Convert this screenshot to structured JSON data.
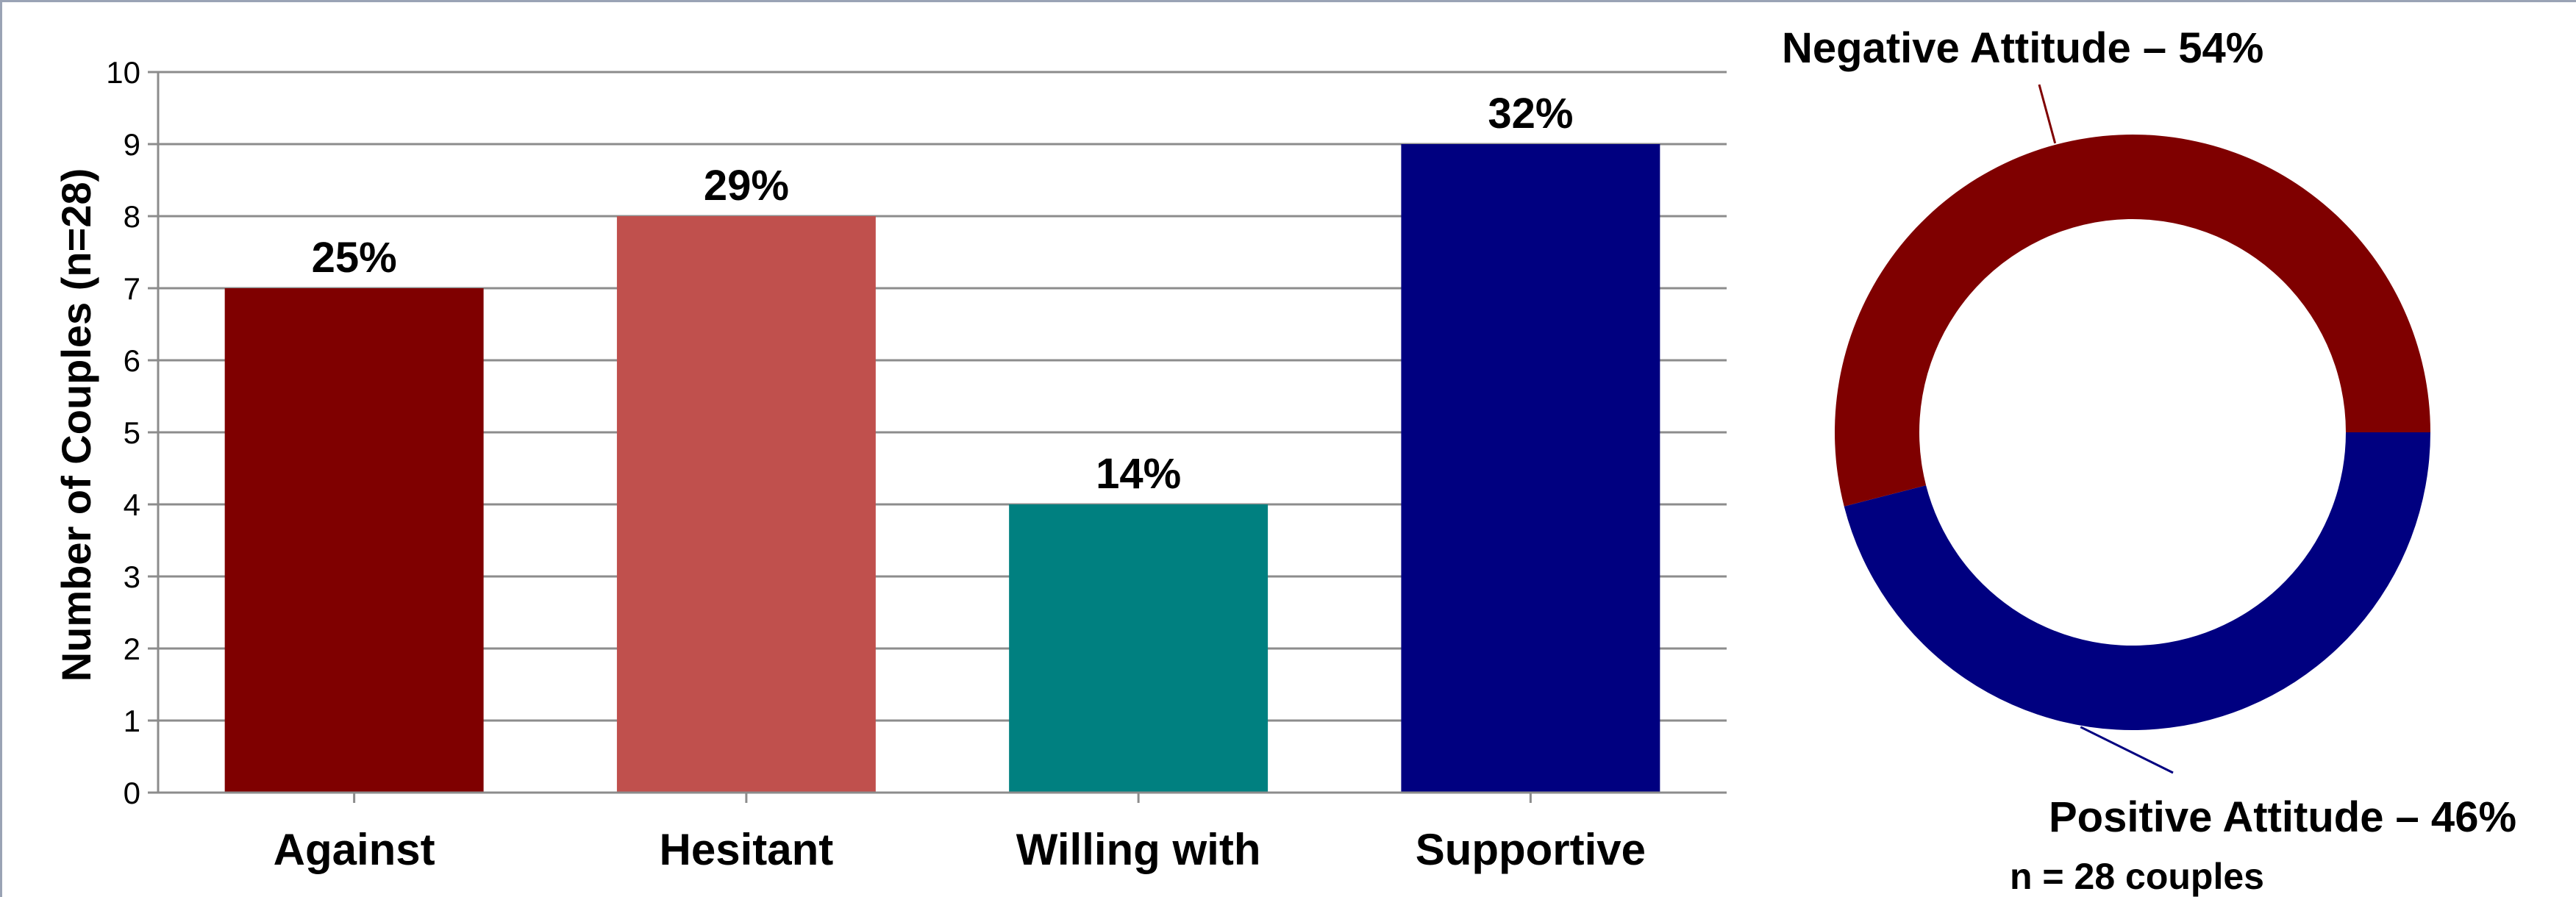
{
  "chart_data": [
    {
      "type": "bar",
      "ylabel": "Number of Couples (n=28)",
      "ylim": [
        0,
        10
      ],
      "yticks": [
        0,
        1,
        2,
        3,
        4,
        5,
        6,
        7,
        8,
        9,
        10
      ],
      "grid": true,
      "categories": [
        "Against",
        "Hesitant",
        "Willing with",
        "Supportive"
      ],
      "values": [
        7,
        8,
        4,
        9
      ],
      "data_labels": [
        "25%",
        "29%",
        "14%",
        "32%"
      ],
      "colors": [
        "#7f0000",
        "#c0504d",
        "#008080",
        "#000080"
      ]
    },
    {
      "type": "pie",
      "style": "donut",
      "slices": [
        {
          "label": "Negative Attitude – 54%",
          "value": 54,
          "color": "#7f0000"
        },
        {
          "label": "Positive Attitude – 46%",
          "value": 46,
          "color": "#000080"
        }
      ],
      "note": "n = 28 couples"
    }
  ]
}
